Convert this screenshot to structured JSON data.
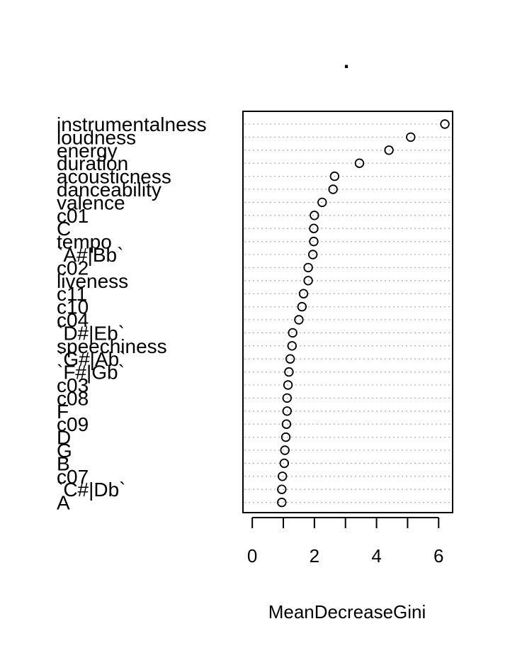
{
  "chart_data": {
    "type": "scatter",
    "title": ".",
    "xlabel": "MeanDecreaseGini",
    "xlim": [
      -0.3,
      6.45
    ],
    "xticks": [
      0,
      2,
      4,
      6
    ],
    "grid": true,
    "categories": [
      "instrumentalness",
      "loudness",
      "energy",
      "duration",
      "acousticness",
      "danceability",
      "valence",
      "c01",
      "C",
      "tempo",
      "`A#|Bb`",
      "c02",
      "liveness",
      "c11",
      "c10",
      "c04",
      "`D#|Eb`",
      "speechiness",
      "`G#|Ab`",
      "`F#|Gb`",
      "c03",
      "c08",
      "F",
      "c09",
      "D",
      "G",
      "B",
      "c07",
      "`C#|Db`",
      "A"
    ],
    "values": [
      6.2,
      5.1,
      4.4,
      3.45,
      2.65,
      2.6,
      2.25,
      2.0,
      1.98,
      1.98,
      1.95,
      1.8,
      1.8,
      1.65,
      1.6,
      1.5,
      1.3,
      1.28,
      1.22,
      1.18,
      1.15,
      1.12,
      1.12,
      1.1,
      1.08,
      1.05,
      1.03,
      0.97,
      0.95,
      0.95
    ]
  }
}
